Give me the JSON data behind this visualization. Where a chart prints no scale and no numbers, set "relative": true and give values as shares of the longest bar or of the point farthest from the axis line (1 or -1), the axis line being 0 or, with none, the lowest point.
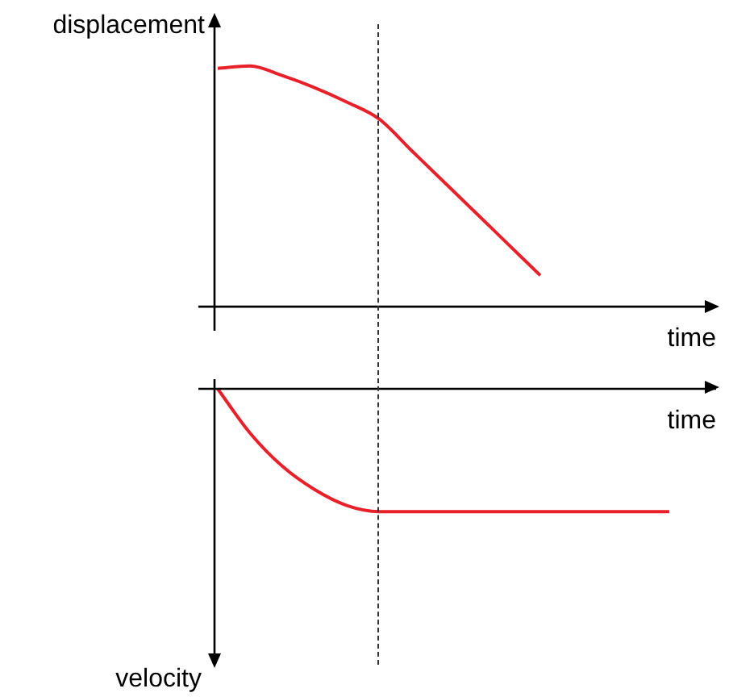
{
  "chart_data": [
    {
      "type": "line",
      "xlabel": "time",
      "ylabel": "displacement",
      "relative": true,
      "legend": false,
      "tick_labels": false,
      "marker": "none",
      "categories": [
        null,
        null,
        null,
        null,
        null,
        null,
        null,
        null,
        null,
        null,
        null,
        null,
        null,
        null,
        null
      ],
      "series": [
        {
          "color": "#e8202a",
          "values": [
            0.99,
            1,
            0.96,
            0.91,
            0.85,
            0.78,
            0.65,
            0.52,
            0.39,
            0.26,
            0.13,
            null,
            null,
            null,
            null
          ]
        }
      ]
    },
    {
      "type": "line",
      "xlabel": "time",
      "ylabel": "velocity",
      "relative": true,
      "legend": false,
      "tick_labels": false,
      "marker": "none",
      "categories": [
        null,
        null,
        null,
        null,
        null,
        null,
        null,
        null,
        null,
        null,
        null,
        null,
        null,
        null,
        null
      ],
      "series": [
        {
          "color": "#e8202a",
          "values": [
            0,
            -0.36,
            -0.63,
            -0.82,
            -0.95,
            -1,
            -1,
            -1,
            -1,
            -1,
            -1,
            -1,
            -1,
            -1,
            -1
          ]
        }
      ]
    }
  ]
}
